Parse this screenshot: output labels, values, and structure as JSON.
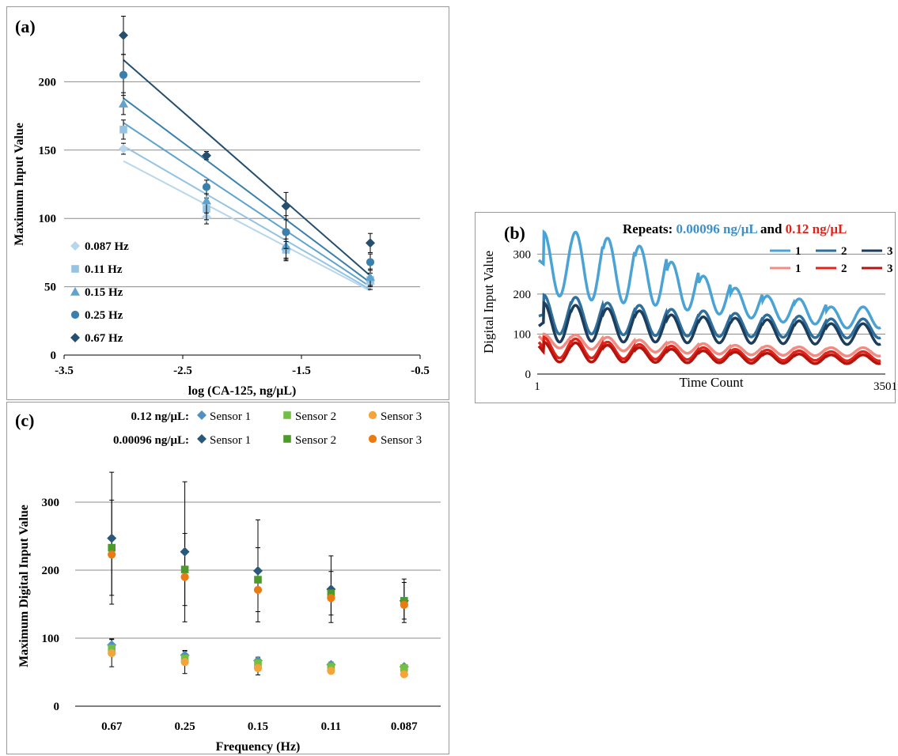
{
  "chart_data": [
    {
      "panel": "(a)",
      "type": "scatter",
      "xlabel": "log (CA-125, ng/μL)",
      "ylabel": "Maximum  Input  Value",
      "xlim": [
        -3.5,
        -0.5
      ],
      "ylim": [
        0,
        250
      ],
      "xticks": [
        "-3.5",
        "-2.5",
        "-1.5",
        "-0.5"
      ],
      "yticks": [
        "0",
        "50",
        "100",
        "150",
        "200"
      ],
      "x": [
        -3.0,
        -2.3,
        -1.63,
        -0.92
      ],
      "legend_position": "bottom-left",
      "grid": true,
      "series": [
        {
          "name": "0.087 Hz",
          "marker": "diamond",
          "color": "#b8d6ec",
          "values": [
            151,
            101,
            77,
            52
          ],
          "err": [
            4,
            5,
            6,
            4
          ],
          "fit": [
            [
              -3.0,
              142
            ],
            [
              -0.92,
              47
            ]
          ]
        },
        {
          "name": "0.11 Hz",
          "marker": "square",
          "color": "#95c3e2",
          "values": [
            165,
            107,
            77,
            55
          ],
          "err": [
            7,
            8,
            8,
            5
          ],
          "fit": [
            [
              -3.0,
              153
            ],
            [
              -0.92,
              48
            ]
          ]
        },
        {
          "name": "0.15 Hz",
          "marker": "triangle",
          "color": "#5fa3cf",
          "values": [
            184,
            113,
            80,
            57
          ],
          "err": [
            8,
            9,
            10,
            6
          ],
          "fit": [
            [
              -3.0,
              170
            ],
            [
              -0.92,
              50
            ]
          ]
        },
        {
          "name": "0.25 Hz",
          "marker": "circle",
          "color": "#3a80ad",
          "values": [
            205,
            123,
            90,
            68
          ],
          "err": [
            15,
            5,
            12,
            6
          ],
          "fit": [
            [
              -3.0,
              188
            ],
            [
              -0.92,
              53
            ]
          ]
        },
        {
          "name": "0.67 Hz",
          "marker": "diamond",
          "color": "#264f6e",
          "values": [
            234,
            146,
            109,
            82
          ],
          "err": [
            14,
            3,
            10,
            7
          ],
          "fit": [
            [
              -3.0,
              216
            ],
            [
              -0.92,
              58
            ]
          ]
        }
      ]
    },
    {
      "panel": "(b)",
      "type": "line",
      "xlabel": "Time Count",
      "ylabel": "Digital  Input Value",
      "xticks": [
        "1",
        "3501"
      ],
      "yticks": [
        "0",
        "100",
        "200",
        "300"
      ],
      "ylim": [
        0,
        360
      ],
      "title_prefix": "Repeats:",
      "title_conc1": "0.00096 ng/μL",
      "title_and": "and",
      "title_conc2": "0.12 ng/μL",
      "grid": true,
      "cycles": 11,
      "series": [
        {
          "name": "1",
          "group": "0.00096 ng/μL",
          "color": "#4aa3d4",
          "start": 285,
          "max": [
            355,
            355,
            340,
            320,
            280,
            245,
            215,
            195,
            188,
            168
          ],
          "min": [
            195,
            185,
            178,
            172,
            160,
            150,
            140,
            130,
            125,
            115
          ]
        },
        {
          "name": "2",
          "group": "0.00096 ng/μL",
          "color": "#2f6f9c",
          "start": 145,
          "max": [
            198,
            192,
            178,
            172,
            162,
            158,
            152,
            148,
            145,
            138
          ],
          "min": [
            100,
            100,
            98,
            96,
            95,
            94,
            93,
            92,
            91,
            90
          ]
        },
        {
          "name": "3",
          "group": "0.00096 ng/μL",
          "color": "#1d3d5c",
          "start": 120,
          "max": [
            178,
            172,
            164,
            158,
            148,
            143,
            140,
            136,
            133,
            126
          ],
          "min": [
            80,
            82,
            80,
            80,
            78,
            78,
            77,
            76,
            75,
            74
          ]
        },
        {
          "name": "1",
          "group": "0.12 ng/μL",
          "color": "#f28b82",
          "start": 95,
          "max": [
            100,
            98,
            92,
            85,
            80,
            76,
            72,
            70,
            68,
            66
          ],
          "min": [
            65,
            62,
            58,
            55,
            52,
            50,
            48,
            47,
            46,
            45
          ]
        },
        {
          "name": "2",
          "group": "0.12 ng/μL",
          "color": "#e2231a",
          "start": 80,
          "max": [
            92,
            88,
            80,
            74,
            70,
            66,
            62,
            60,
            58,
            56
          ],
          "min": [
            40,
            40,
            38,
            37,
            36,
            35,
            35,
            34,
            34,
            33
          ]
        },
        {
          "name": "3",
          "group": "0.12 ng/μL",
          "color": "#b3150f",
          "start": 70,
          "max": [
            80,
            78,
            72,
            66,
            62,
            58,
            55,
            52,
            50,
            48
          ],
          "min": [
            30,
            30,
            30,
            29,
            28,
            28,
            27,
            27,
            26,
            26
          ]
        }
      ]
    },
    {
      "panel": "(c)",
      "type": "scatter",
      "xlabel": "Frequency  (Hz)",
      "ylabel": "Maximum  Digital  Input  Value",
      "categories": [
        "0.67",
        "0.25",
        "0.15",
        "0.11",
        "0.087"
      ],
      "ylim": [
        0,
        400
      ],
      "yticks": [
        "0",
        "100",
        "200",
        "300"
      ],
      "grid": true,
      "legend_label_high": "0.12 ng/μL:",
      "legend_label_low": "0.00096 ng/μL:",
      "series": [
        {
          "name": "Sensor 1",
          "group": "0.12 ng/μL",
          "marker": "diamond",
          "color": "#4e91c2",
          "values": [
            90,
            75,
            67,
            61,
            58
          ],
          "err": [
            9,
            6,
            5,
            4,
            3
          ]
        },
        {
          "name": "Sensor 2",
          "group": "0.12 ng/μL",
          "marker": "square",
          "color": "#72bf44",
          "values": [
            85,
            70,
            63,
            58,
            56
          ],
          "err": [
            0,
            0,
            0,
            0,
            0
          ]
        },
        {
          "name": "Sensor 3",
          "group": "0.12 ng/μL",
          "marker": "circle",
          "color": "#f4a43a",
          "values": [
            78,
            65,
            56,
            52,
            47
          ],
          "err": [
            20,
            17,
            10,
            0,
            0
          ]
        },
        {
          "name": "Sensor 1",
          "group": "0.00096 ng/μL",
          "marker": "diamond",
          "color": "#2a5878",
          "values": [
            247,
            227,
            199,
            172,
            155
          ],
          "err": [
            97,
            103,
            75,
            49,
            32
          ]
        },
        {
          "name": "Sensor 2",
          "group": "0.00096 ng/μL",
          "marker": "square",
          "color": "#4d9a2b",
          "values": [
            233,
            201,
            186,
            166,
            155
          ],
          "err": [
            70,
            53,
            47,
            32,
            27
          ]
        },
        {
          "name": "Sensor 3",
          "group": "0.00096 ng/μL",
          "marker": "circle",
          "color": "#ec7a12",
          "values": [
            223,
            190,
            171,
            159,
            149
          ],
          "err": [
            0,
            0,
            0,
            0,
            0
          ]
        }
      ]
    }
  ]
}
